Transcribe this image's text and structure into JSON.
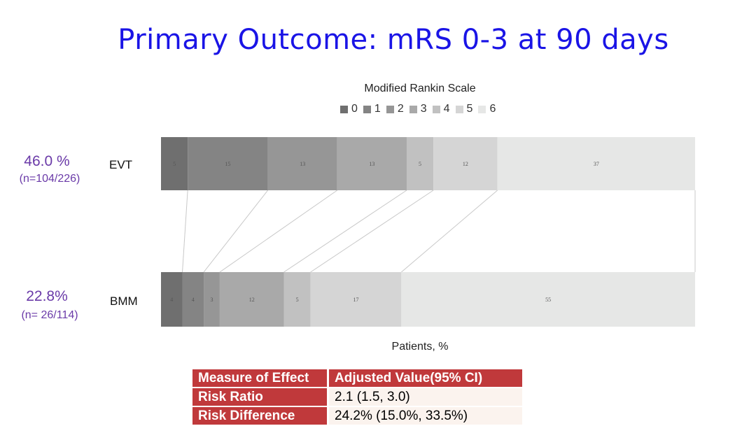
{
  "title": "Primary Outcome: mRS 0-3 at 90 days",
  "chart_data": {
    "type": "stacked-bar-horizontal",
    "title": "Primary Outcome: mRS 0-3 at 90 days",
    "legend_title": "Modified Rankin Scale",
    "legend_placement": "top",
    "categories": [
      "0",
      "1",
      "2",
      "3",
      "4",
      "5",
      "6"
    ],
    "colors": [
      "#6f6f6f",
      "#848484",
      "#969696",
      "#a9a9a9",
      "#c1c1c1",
      "#d5d5d5",
      "#e6e7e6"
    ],
    "xlabel": "Patients, %",
    "xlim": [
      0,
      100
    ],
    "rows": [
      {
        "label": "EVT",
        "percent_text": "46.0 %",
        "n_text": "(n=104/226)",
        "values": [
          5,
          15,
          13,
          13,
          5,
          12,
          37
        ]
      },
      {
        "label": "BMM",
        "percent_text": "22.8%",
        "n_text": "(n= 26/114)",
        "values": [
          4,
          4,
          3,
          12,
          5,
          17,
          55
        ]
      }
    ]
  },
  "effect_table": {
    "headers": [
      "Measure of Effect",
      "Adjusted Value(95% CI)"
    ],
    "rows": [
      {
        "measure": "Risk Ratio",
        "value": "2.1 (1.5, 3.0)"
      },
      {
        "measure": "Risk Difference",
        "value": "24.2% (15.0%, 33.5%)"
      }
    ]
  }
}
